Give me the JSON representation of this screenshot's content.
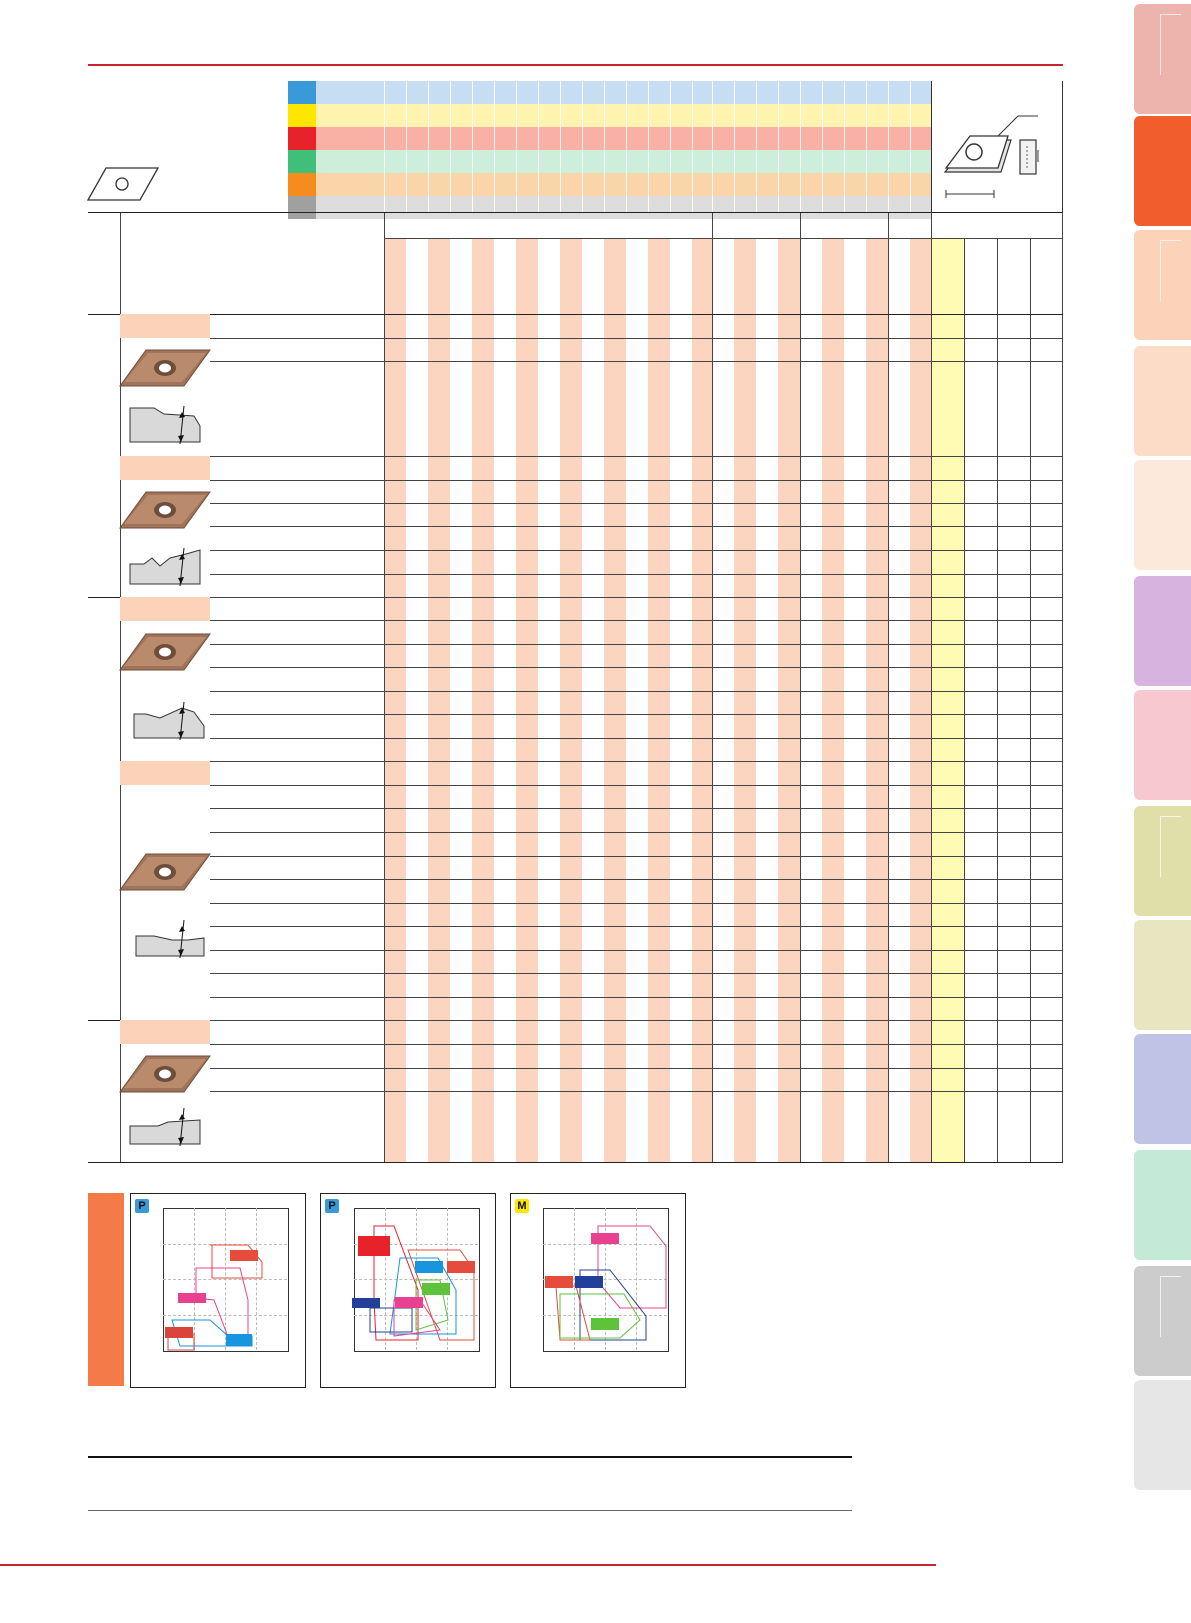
{
  "colors": {
    "brand_red": "#c8242b",
    "stripe": "#fbd5bf",
    "yellow_column": "#fffbb4",
    "section_band": "#fcd2b8",
    "side_orange": "#f47a48",
    "material_bands": [
      "#c7ddf4",
      "#fff3b0",
      "#f9b1a6",
      "#cdeed8",
      "#fbd5aa",
      "#dddddd"
    ],
    "material_chips": [
      "#3a9ad9",
      "#ffe600",
      "#e8222b",
      "#3fbf7a",
      "#f68b1e",
      "#a0a0a0"
    ]
  },
  "icons": {
    "header_insert": "rhombic-insert-outline-icon",
    "dimension_diagram": "insert-dimension-diagram-icon",
    "insert_photos": [
      "insert-photo-icon",
      "insert-photo-icon",
      "insert-photo-icon",
      "insert-photo-icon",
      "insert-photo-icon"
    ],
    "edge_profiles": [
      "edge-profile-icon",
      "edge-profile-icon",
      "edge-profile-icon",
      "edge-profile-icon",
      "edge-profile-icon"
    ]
  },
  "side_tabs": [
    "#ecb4ad",
    "#f25e2b",
    "#fcd3b8",
    "#fcdcc6",
    "#fde9db",
    "#d7b4df",
    "#f8c8d0",
    "#e0dfaa",
    "#e8e6c0",
    "#c0c3e5",
    "#c5e9d7",
    "#cccccc",
    "#e6e6e6"
  ],
  "charts": [
    {
      "badge": "P",
      "badge_color": "#3a9ad9"
    },
    {
      "badge": "P",
      "badge_color": "#3a9ad9"
    },
    {
      "badge": "M",
      "badge_color": "#ffe600"
    }
  ]
}
